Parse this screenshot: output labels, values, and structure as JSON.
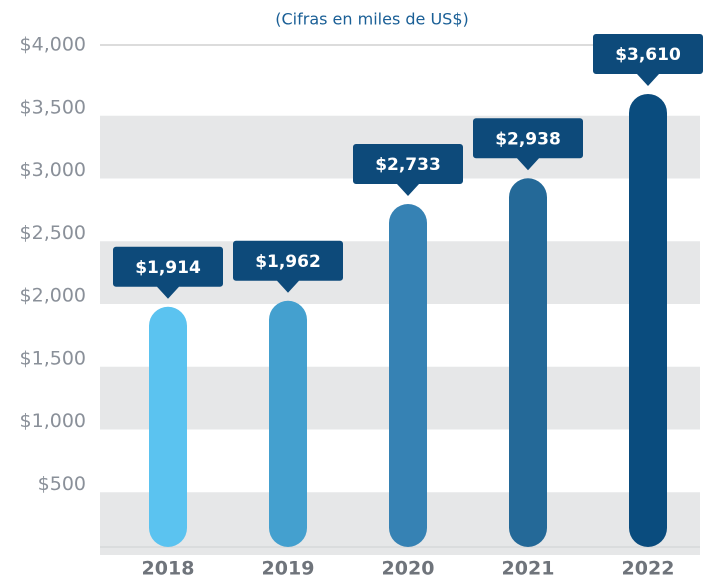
{
  "chart_data": {
    "type": "bar",
    "title": "(Cifras en miles de US$)",
    "categories": [
      "2018",
      "2019",
      "2020",
      "2021",
      "2022"
    ],
    "values": [
      1914,
      1962,
      2733,
      2938,
      3610
    ],
    "value_labels": [
      "$1,914",
      "$1,962",
      "$2,733",
      "$2,938",
      "$3,610"
    ],
    "colors": [
      "#5bc3f0",
      "#44a0cf",
      "#3682b4",
      "#246998",
      "#0a4c7e"
    ],
    "label_color": "#0d4a7a",
    "ylim": [
      0,
      4000
    ],
    "yticks": [
      {
        "value": 500,
        "label": "$500"
      },
      {
        "value": 1000,
        "label": "$1,000"
      },
      {
        "value": 1500,
        "label": "$1,500"
      },
      {
        "value": 2000,
        "label": "$2,000"
      },
      {
        "value": 2500,
        "label": "$2,500"
      },
      {
        "value": 3000,
        "label": "$3,000"
      },
      {
        "value": 3500,
        "label": "$3,500"
      },
      {
        "value": 4000,
        "label": "$4,000"
      }
    ],
    "grid": true
  }
}
